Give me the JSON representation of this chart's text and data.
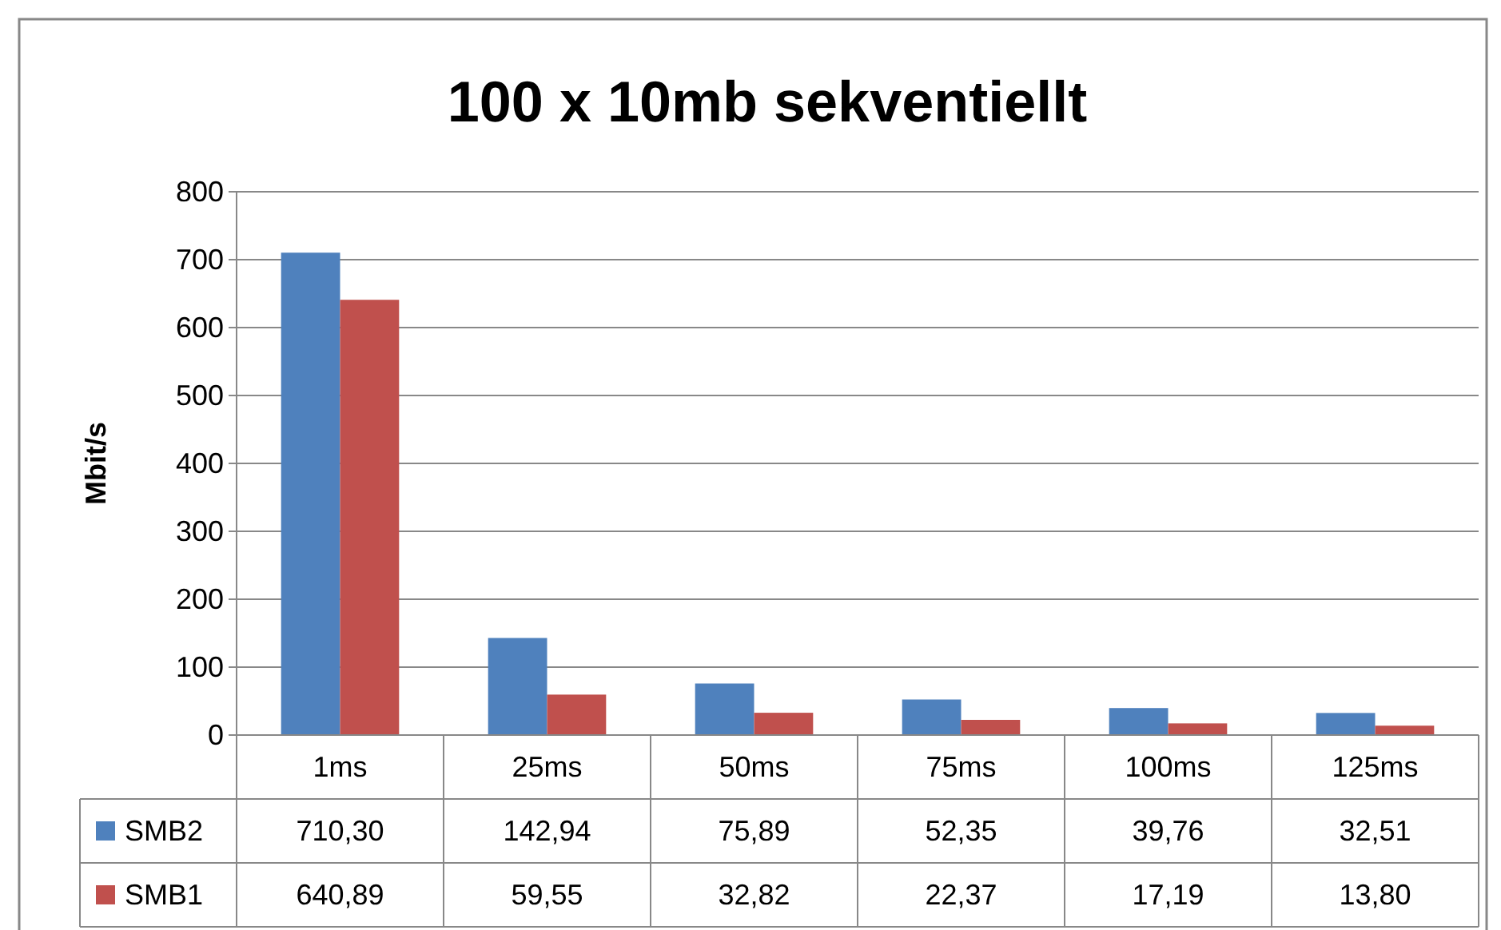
{
  "chart_data": {
    "type": "bar",
    "title": "100 x 10mb sekventiellt",
    "ylabel": "Mbit/s",
    "categories": [
      "1ms",
      "25ms",
      "50ms",
      "75ms",
      "100ms",
      "125ms"
    ],
    "series": [
      {
        "name": "SMB2",
        "color": "#4f81bd",
        "values": [
          710.3,
          142.94,
          75.89,
          52.35,
          39.76,
          32.51
        ],
        "value_labels": [
          "710,30",
          "142,94",
          "75,89",
          "52,35",
          "39,76",
          "32,51"
        ]
      },
      {
        "name": "SMB1",
        "color": "#c0504d",
        "values": [
          640.89,
          59.55,
          32.82,
          22.37,
          17.19,
          13.8
        ],
        "value_labels": [
          "640,89",
          "59,55",
          "32,82",
          "22,37",
          "17,19",
          "13,80"
        ]
      }
    ],
    "ylim": [
      0,
      800
    ],
    "yticks": [
      0,
      100,
      200,
      300,
      400,
      500,
      600,
      700,
      800
    ],
    "grid": "y",
    "legend": "bottom left"
  }
}
